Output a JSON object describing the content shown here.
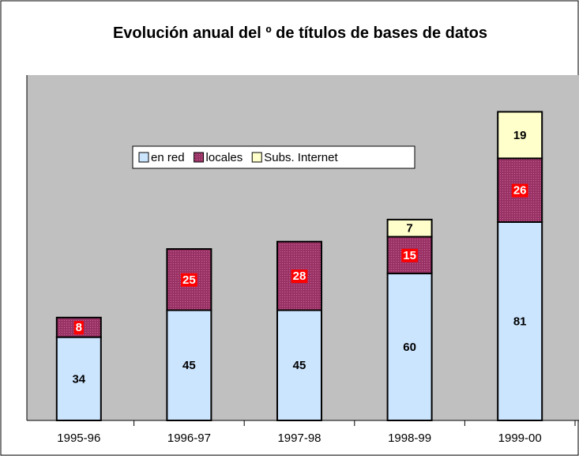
{
  "chart_data": {
    "type": "stacked_bar",
    "title": "Evolución anual del º de títulos de bases de datos",
    "categories": [
      "1995-96",
      "1996-97",
      "1997-98",
      "1998-99",
      "1999-00"
    ],
    "series": [
      {
        "name": "en red",
        "color": "#cce5ff",
        "values": [
          34,
          45,
          45,
          60,
          81
        ]
      },
      {
        "name": "locales",
        "color": "#993366",
        "values": [
          8,
          25,
          28,
          15,
          26
        ]
      },
      {
        "name": "Subs. Internet",
        "color": "#ffffcc",
        "values": [
          null,
          null,
          null,
          7,
          19
        ]
      }
    ],
    "ylim": [
      0,
      141
    ]
  }
}
